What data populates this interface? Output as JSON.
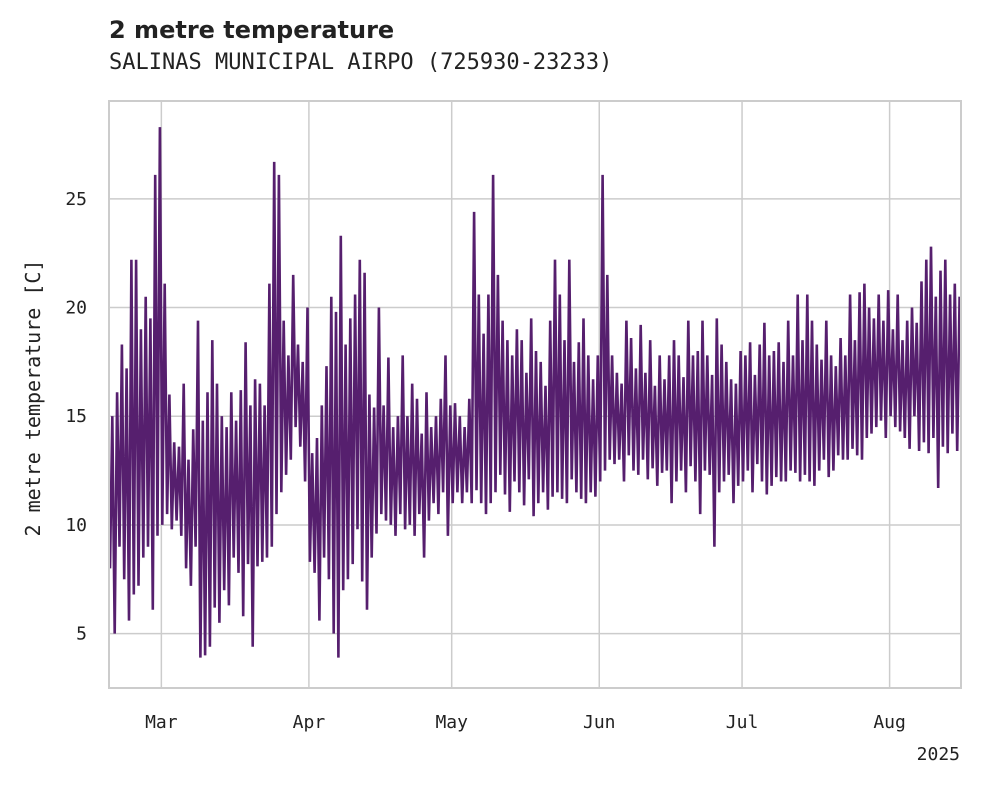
{
  "chart_data": {
    "type": "line",
    "title": "2 metre temperature",
    "subtitle": "SALINAS MUNICIPAL AIRPO (725930-23233)",
    "ylabel": "2 metre temperature [C]",
    "xlabel": "",
    "year_label": "2025",
    "xlim": [
      "2025-02-18",
      "2025-08-16"
    ],
    "ylim": [
      2.5,
      29.5
    ],
    "y_ticks": [
      5,
      10,
      15,
      20,
      25
    ],
    "x_ticks": [
      {
        "date": "2025-03-01",
        "label": "Mar"
      },
      {
        "date": "2025-04-01",
        "label": "Apr"
      },
      {
        "date": "2025-05-01",
        "label": "May"
      },
      {
        "date": "2025-06-01",
        "label": "Jun"
      },
      {
        "date": "2025-07-01",
        "label": "Jul"
      },
      {
        "date": "2025-08-01",
        "label": "Aug"
      }
    ],
    "grid": true,
    "line_color": "#561f6e",
    "series": [
      {
        "x": [
          "2025-02-18",
          "2025-02-19",
          "2025-02-20",
          "2025-02-21",
          "2025-02-22",
          "2025-02-23",
          "2025-02-24",
          "2025-02-25",
          "2025-02-26",
          "2025-02-27",
          "2025-02-28",
          "2025-03-01",
          "2025-03-02",
          "2025-03-03",
          "2025-03-04",
          "2025-03-05",
          "2025-03-06",
          "2025-03-07",
          "2025-03-08",
          "2025-03-09",
          "2025-03-10",
          "2025-03-11",
          "2025-03-12",
          "2025-03-13",
          "2025-03-14",
          "2025-03-15",
          "2025-03-16",
          "2025-03-17",
          "2025-03-18",
          "2025-03-19",
          "2025-03-20",
          "2025-03-21",
          "2025-03-22",
          "2025-03-23",
          "2025-03-24",
          "2025-03-25",
          "2025-03-26",
          "2025-03-27",
          "2025-03-28",
          "2025-03-29",
          "2025-03-30",
          "2025-03-31",
          "2025-04-01",
          "2025-04-02",
          "2025-04-03",
          "2025-04-04",
          "2025-04-05",
          "2025-04-06",
          "2025-04-07",
          "2025-04-08",
          "2025-04-09",
          "2025-04-10",
          "2025-04-11",
          "2025-04-12",
          "2025-04-13",
          "2025-04-14",
          "2025-04-15",
          "2025-04-16",
          "2025-04-17",
          "2025-04-18",
          "2025-04-19",
          "2025-04-20",
          "2025-04-21",
          "2025-04-22",
          "2025-04-23",
          "2025-04-24",
          "2025-04-25",
          "2025-04-26",
          "2025-04-27",
          "2025-04-28",
          "2025-04-29",
          "2025-04-30",
          "2025-05-01",
          "2025-05-02",
          "2025-05-03",
          "2025-05-04",
          "2025-05-05",
          "2025-05-06",
          "2025-05-07",
          "2025-05-08",
          "2025-05-09",
          "2025-05-10",
          "2025-05-11",
          "2025-05-12",
          "2025-05-13",
          "2025-05-14",
          "2025-05-15",
          "2025-05-16",
          "2025-05-17",
          "2025-05-18",
          "2025-05-19",
          "2025-05-20",
          "2025-05-21",
          "2025-05-22",
          "2025-05-23",
          "2025-05-24",
          "2025-05-25",
          "2025-05-26",
          "2025-05-27",
          "2025-05-28",
          "2025-05-29",
          "2025-05-30",
          "2025-05-31",
          "2025-06-01",
          "2025-06-02",
          "2025-06-03",
          "2025-06-04",
          "2025-06-05",
          "2025-06-06",
          "2025-06-07",
          "2025-06-08",
          "2025-06-09",
          "2025-06-10",
          "2025-06-11",
          "2025-06-12",
          "2025-06-13",
          "2025-06-14",
          "2025-06-15",
          "2025-06-16",
          "2025-06-17",
          "2025-06-18",
          "2025-06-19",
          "2025-06-20",
          "2025-06-21",
          "2025-06-22",
          "2025-06-23",
          "2025-06-24",
          "2025-06-25",
          "2025-06-26",
          "2025-06-27",
          "2025-06-28",
          "2025-06-29",
          "2025-06-30",
          "2025-07-01",
          "2025-07-02",
          "2025-07-03",
          "2025-07-04",
          "2025-07-05",
          "2025-07-06",
          "2025-07-07",
          "2025-07-08",
          "2025-07-09",
          "2025-07-10",
          "2025-07-11",
          "2025-07-12",
          "2025-07-13",
          "2025-07-14",
          "2025-07-15",
          "2025-07-16",
          "2025-07-17",
          "2025-07-18",
          "2025-07-19",
          "2025-07-20",
          "2025-07-21",
          "2025-07-22",
          "2025-07-23",
          "2025-07-24",
          "2025-07-25",
          "2025-07-26",
          "2025-07-27",
          "2025-07-28",
          "2025-07-29",
          "2025-07-30",
          "2025-07-31",
          "2025-08-01",
          "2025-08-02",
          "2025-08-03",
          "2025-08-04",
          "2025-08-05",
          "2025-08-06",
          "2025-08-07",
          "2025-08-08",
          "2025-08-09",
          "2025-08-10",
          "2025-08-11",
          "2025-08-12",
          "2025-08-13",
          "2025-08-14",
          "2025-08-15"
        ],
        "min": [
          8.0,
          5.0,
          9.0,
          7.5,
          5.6,
          6.8,
          7.2,
          8.5,
          9.0,
          6.1,
          9.5,
          10.0,
          10.5,
          9.8,
          10.2,
          9.5,
          8.0,
          7.2,
          9.0,
          3.9,
          4.0,
          4.4,
          6.2,
          5.5,
          7.0,
          6.3,
          8.5,
          7.8,
          5.8,
          8.2,
          4.4,
          8.1,
          8.3,
          8.5,
          9.0,
          10.5,
          11.5,
          12.3,
          13.0,
          14.5,
          13.6,
          12.0,
          8.3,
          7.8,
          5.6,
          8.5,
          7.5,
          5.0,
          3.9,
          7.0,
          7.5,
          8.2,
          9.8,
          7.4,
          6.1,
          8.5,
          9.6,
          10.5,
          10.2,
          10.0,
          9.5,
          10.5,
          9.8,
          10.0,
          9.5,
          10.5,
          8.5,
          10.2,
          11.0,
          10.5,
          11.5,
          9.5,
          11.0,
          11.5,
          11.0,
          11.5,
          11.0,
          11.6,
          11.0,
          10.5,
          11.0,
          11.5,
          12.3,
          11.4,
          10.6,
          12.0,
          11.5,
          10.9,
          12.1,
          10.4,
          11.0,
          11.5,
          10.7,
          11.3,
          11.5,
          11.2,
          11.0,
          12.1,
          11.5,
          11.2,
          11.0,
          11.5,
          11.3,
          12.0,
          12.5,
          13.0,
          12.8,
          13.0,
          12.0,
          13.2,
          12.5,
          12.3,
          13.0,
          12.1,
          12.6,
          11.8,
          12.4,
          12.5,
          11.0,
          12.0,
          12.5,
          11.5,
          12.7,
          12.0,
          10.5,
          12.5,
          12.3,
          9.0,
          11.5,
          12.0,
          12.3,
          11.0,
          11.8,
          12.0,
          12.5,
          11.5,
          12.8,
          12.0,
          11.4,
          11.8,
          12.2,
          12.0,
          12.0,
          12.5,
          12.4,
          12.0,
          12.3,
          12.0,
          11.8,
          12.5,
          13.0,
          12.2,
          12.5,
          13.2,
          13.0,
          13.0,
          13.5,
          13.2,
          13.0,
          14.0,
          14.2,
          14.5,
          14.8,
          14.0,
          15.0,
          14.5,
          14.3,
          14.0,
          13.5,
          15.0,
          13.4,
          13.8,
          13.3,
          14.0,
          11.7,
          13.6,
          13.3,
          14.2,
          13.4,
          14.0,
          13.5,
          14.5,
          15.0
        ],
        "max": [
          15.0,
          16.1,
          18.3,
          17.2,
          22.2,
          22.2,
          19.0,
          20.5,
          19.5,
          26.1,
          28.3,
          21.1,
          16.0,
          13.8,
          13.6,
          16.5,
          13.0,
          14.4,
          19.4,
          14.8,
          16.1,
          18.5,
          16.5,
          15.0,
          14.5,
          16.1,
          14.8,
          16.2,
          18.4,
          15.5,
          16.7,
          16.5,
          15.5,
          21.1,
          26.7,
          26.1,
          19.4,
          17.8,
          21.5,
          18.3,
          17.5,
          20.0,
          13.3,
          14.0,
          15.5,
          17.3,
          20.5,
          19.8,
          23.3,
          18.3,
          19.5,
          20.6,
          22.2,
          21.6,
          16.0,
          15.4,
          20.0,
          15.5,
          17.7,
          14.5,
          15.0,
          17.8,
          15.0,
          16.5,
          15.8,
          14.2,
          16.1,
          14.5,
          15.0,
          15.8,
          17.8,
          15.5,
          15.6,
          15.0,
          14.5,
          15.8,
          24.4,
          20.6,
          18.8,
          20.6,
          26.1,
          21.5,
          19.4,
          18.5,
          17.8,
          19.0,
          18.5,
          17.0,
          19.5,
          18.0,
          17.5,
          16.4,
          19.4,
          22.2,
          20.6,
          18.5,
          22.2,
          17.5,
          18.4,
          19.5,
          17.8,
          16.7,
          17.8,
          26.1,
          21.5,
          17.8,
          17.0,
          16.5,
          19.4,
          18.6,
          17.2,
          19.2,
          17.0,
          18.5,
          16.4,
          17.8,
          16.7,
          17.8,
          18.5,
          17.8,
          16.8,
          19.4,
          17.8,
          18.0,
          19.4,
          17.8,
          16.9,
          19.5,
          18.3,
          17.5,
          16.7,
          16.5,
          18.0,
          17.8,
          18.4,
          16.9,
          18.3,
          19.3,
          17.8,
          18.0,
          18.4,
          17.5,
          19.4,
          17.8,
          20.6,
          18.5,
          20.6,
          19.4,
          18.3,
          17.6,
          19.4,
          17.8,
          17.3,
          18.6,
          17.8,
          20.6,
          18.5,
          20.7,
          21.1,
          20.0,
          19.5,
          20.6,
          19.4,
          20.8,
          19.0,
          20.6,
          18.5,
          19.4,
          20.0,
          19.3,
          21.2,
          22.2,
          22.8,
          20.5,
          21.7,
          22.2,
          20.6,
          21.1,
          20.5,
          19.6,
          20.6,
          20.6,
          18.3
        ]
      }
    ]
  }
}
